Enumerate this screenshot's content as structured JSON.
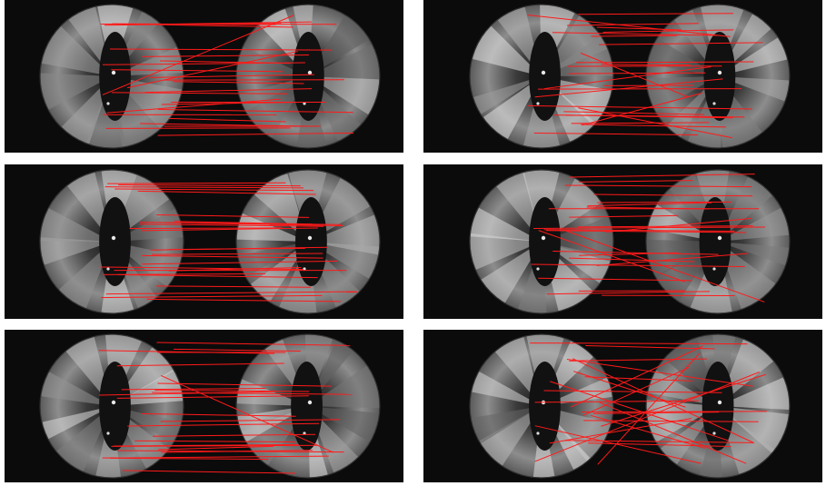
{
  "figure": {
    "panels": [
      {
        "left_view": "fisheye-left",
        "right_view": "fisheye-right",
        "match_quality": "mostly-parallel"
      },
      {
        "left_view": "fisheye-left",
        "right_view": "fisheye-right",
        "match_quality": "mixed"
      },
      {
        "left_view": "fisheye-left",
        "right_view": "fisheye-right",
        "match_quality": "mostly-parallel"
      },
      {
        "left_view": "fisheye-left",
        "right_view": "fisheye-right",
        "match_quality": "mixed"
      },
      {
        "left_view": "fisheye-left",
        "right_view": "fisheye-right",
        "match_quality": "mostly-parallel"
      },
      {
        "left_view": "fisheye-left",
        "right_view": "fisheye-right",
        "match_quality": "many-outliers"
      }
    ],
    "colors": {
      "background": "#0b0b0b",
      "match_line": "#ff1a1a",
      "page": "#ffffff"
    }
  }
}
